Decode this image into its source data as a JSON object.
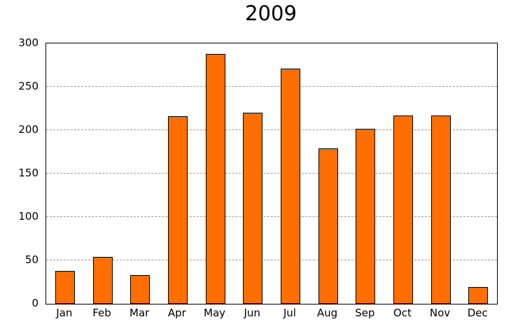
{
  "chart_data": {
    "type": "bar",
    "title": "2009",
    "categories": [
      "Jan",
      "Feb",
      "Mar",
      "Apr",
      "May",
      "Jun",
      "Jul",
      "Aug",
      "Sep",
      "Oct",
      "Nov",
      "Dec"
    ],
    "values": [
      38,
      54,
      33,
      216,
      288,
      220,
      271,
      179,
      202,
      217,
      217,
      19
    ],
    "xlabel": "",
    "ylabel": "",
    "ylim": [
      0,
      300
    ],
    "yticks": [
      0,
      50,
      100,
      150,
      200,
      250,
      300
    ],
    "grid": "horizontal dashed gridlines at interior ticks",
    "legend": "none",
    "bar_fill_color": "#ff6e00",
    "bar_border_color": "#000000",
    "gridline_color": "#9a9a9a",
    "frame_color": "#000000",
    "background_color": "#ffffff"
  }
}
